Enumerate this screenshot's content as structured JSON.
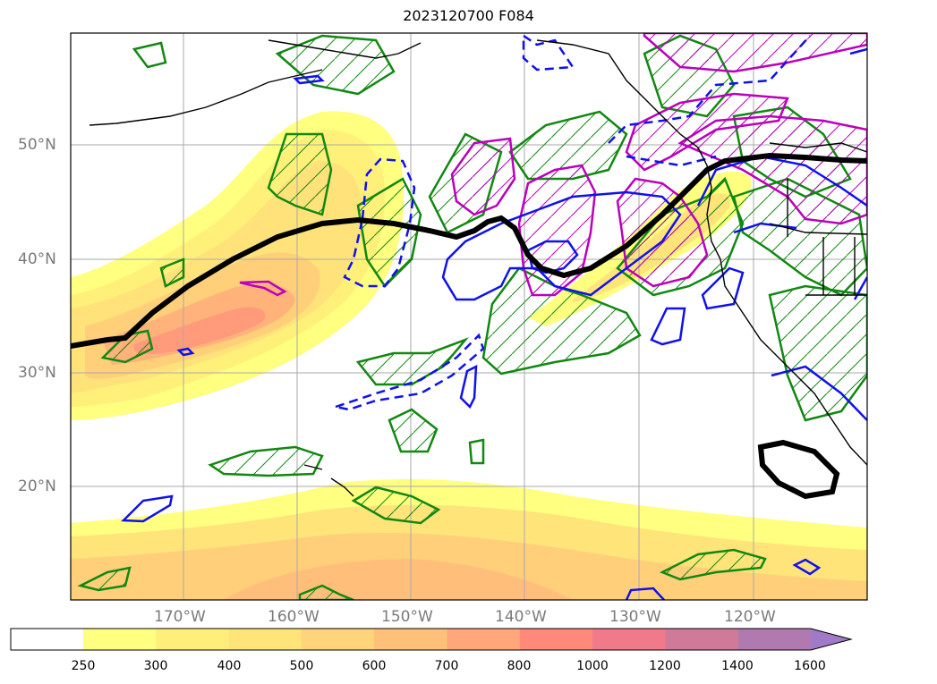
{
  "title": "2023120700 F084",
  "lat_labels": [
    "50°N",
    "40°N",
    "30°N",
    "20°N"
  ],
  "lon_labels": [
    "170°W",
    "160°W",
    "150°W",
    "140°W",
    "130°W",
    "120°W"
  ],
  "colorbar": {
    "ticks": [
      "250",
      "300",
      "400",
      "500",
      "600",
      "700",
      "800",
      "1000",
      "1200",
      "1400",
      "1600"
    ],
    "colors": [
      "#ffff80",
      "#ffef7a",
      "#ffe47a",
      "#ffd47a",
      "#ffc07a",
      "#ffa67a",
      "#ff8a7a",
      "#f07a8a",
      "#d07a9a",
      "#b07ab0",
      "#a07ac8"
    ],
    "extend": "max"
  },
  "contour_colors": {
    "jet_axis": "#000000",
    "green": "#118811",
    "blue": "#1010ee",
    "magenta": "#bb00bb"
  }
}
